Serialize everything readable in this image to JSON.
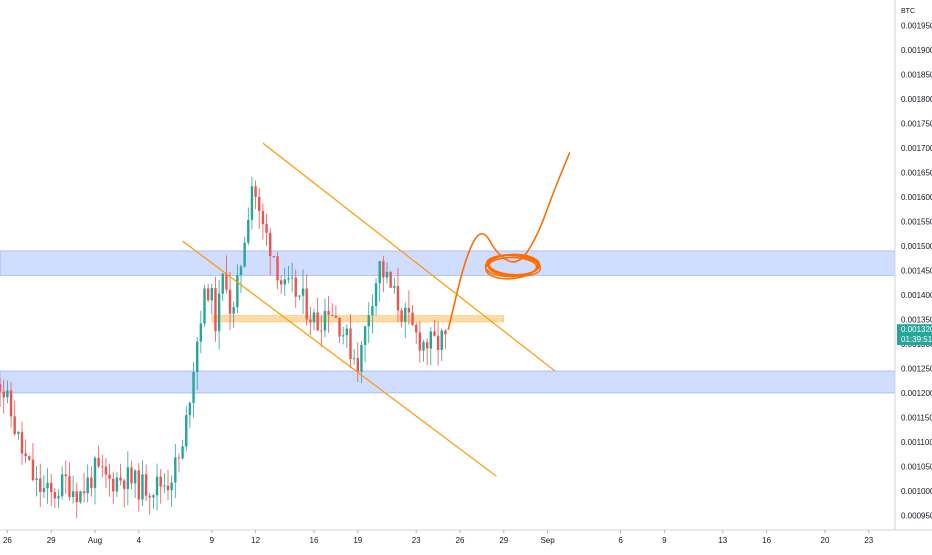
{
  "chart_data": {
    "type": "candlestick",
    "quote_currency": "BTC",
    "y_unit_label": "BTC",
    "ylim": [
      0.000925,
      0.002
    ],
    "grid": false,
    "up_color": "#26a69a",
    "down_color": "#ef5350",
    "y_ticks": [
      "0.001950",
      "0.001900",
      "0.001850",
      "0.001800",
      "0.001750",
      "0.001700",
      "0.001650",
      "0.001600",
      "0.001550",
      "0.001500",
      "0.001450",
      "0.001400",
      "0.001350",
      "0.001300",
      "0.001250",
      "0.001200",
      "0.001150",
      "0.001100",
      "0.001050",
      "0.001000",
      "0.000950"
    ],
    "y_tick_values": [
      0.00195,
      0.0019,
      0.00185,
      0.0018,
      0.00175,
      0.0017,
      0.00165,
      0.0016,
      0.00155,
      0.0015,
      0.00145,
      0.0014,
      0.00135,
      0.0013,
      0.00125,
      0.0012,
      0.00115,
      0.0011,
      0.00105,
      0.001,
      0.00095
    ],
    "x_ticks": [
      "26",
      "29",
      "Aug",
      "4",
      "9",
      "12",
      "16",
      "19",
      "23",
      "26",
      "29",
      "Sep",
      "6",
      "9",
      "13",
      "16",
      "20",
      "23"
    ],
    "x_tick_days": [
      -6,
      -3,
      0,
      3,
      8,
      11,
      15,
      18,
      22,
      25,
      28,
      31,
      36,
      39,
      43,
      46,
      50,
      53
    ],
    "last_price": {
      "value": 0.00132,
      "label": "0.001320",
      "countdown": "01:39:51",
      "color": "#26a69a"
    },
    "candle_interval_days": 0.25,
    "candle_anchors": [
      [
        -7.0,
        0.00126
      ],
      [
        -6.0,
        0.00118
      ],
      [
        -5.0,
        0.00108
      ],
      [
        -4.0,
        0.00101
      ],
      [
        -3.0,
        0.00099
      ],
      [
        -2.0,
        0.00102
      ],
      [
        -1.0,
        0.000995
      ],
      [
        0.0,
        0.00104
      ],
      [
        1.0,
        0.00102
      ],
      [
        2.0,
        0.00103
      ],
      [
        3.0,
        0.00101
      ],
      [
        4.0,
        0.00101
      ],
      [
        5.0,
        0.00102
      ],
      [
        6.0,
        0.00108
      ],
      [
        6.7,
        0.00125
      ],
      [
        7.3,
        0.00137
      ],
      [
        7.8,
        0.00142
      ],
      [
        8.3,
        0.00134
      ],
      [
        8.9,
        0.00146
      ],
      [
        9.4,
        0.00134
      ],
      [
        10.1,
        0.00149
      ],
      [
        10.8,
        0.00164
      ],
      [
        11.3,
        0.00155
      ],
      [
        12.2,
        0.00149
      ],
      [
        12.9,
        0.00141
      ],
      [
        13.6,
        0.00141
      ],
      [
        14.4,
        0.00138
      ],
      [
        15.2,
        0.00134
      ],
      [
        16.0,
        0.00138
      ],
      [
        16.8,
        0.00134
      ],
      [
        17.5,
        0.00129
      ],
      [
        18.1,
        0.00126
      ],
      [
        18.8,
        0.00138
      ],
      [
        19.5,
        0.00146
      ],
      [
        20.3,
        0.00141
      ],
      [
        21.1,
        0.00136
      ],
      [
        21.9,
        0.00132
      ],
      [
        22.6,
        0.0013
      ],
      [
        23.5,
        0.0013
      ],
      [
        24.0,
        0.00132
      ]
    ],
    "zones": [
      {
        "name": "upper-demand-zone",
        "from": 0.00144,
        "to": 0.00149,
        "x_end": null,
        "color": "#2962ff",
        "opacity": 0.22
      },
      {
        "name": "lower-demand-zone",
        "from": 0.0012,
        "to": 0.001245,
        "x_end": null,
        "color": "#2962ff",
        "opacity": 0.22
      },
      {
        "name": "orange-resistance-band",
        "from": 0.001345,
        "to": 0.001358,
        "x_start": 8.0,
        "x_end": 28.0,
        "color": "#ff9800",
        "opacity": 0.35
      }
    ],
    "trendlines": [
      {
        "name": "channel-upper-line",
        "from": [
          11.5,
          0.00171
        ],
        "to": [
          31.5,
          0.001245
        ],
        "color": "#ff9800"
      },
      {
        "name": "channel-lower-line",
        "from": [
          6.0,
          0.00151
        ],
        "to": [
          27.5,
          0.00103
        ],
        "color": "#ff9800"
      }
    ],
    "projection_path": {
      "color": "#ff6d00",
      "points": [
        [
          24.2,
          0.00133
        ],
        [
          25.4,
          0.00148
        ],
        [
          26.5,
          0.00154
        ],
        [
          27.6,
          0.00148
        ],
        [
          29.0,
          0.00146
        ],
        [
          30.3,
          0.00152
        ],
        [
          31.4,
          0.00161
        ],
        [
          32.5,
          0.00169
        ]
      ]
    },
    "target_ellipse": {
      "center": [
        28.6,
        0.00146
      ],
      "color": "#ff6d00"
    }
  }
}
